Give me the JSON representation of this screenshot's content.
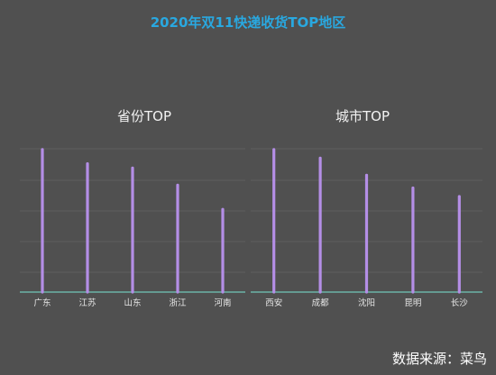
{
  "main_title": "2020年双11快递收货TOP地区",
  "source_text": "数据来源：菜鸟",
  "colors": {
    "bar": "#b48ee6",
    "axis": "#6fc6b8",
    "grid": "#5e5e5e",
    "title": "#29a8e0"
  },
  "chart_data": [
    {
      "type": "bar",
      "title": "省份TOP",
      "categories": [
        "广东",
        "江苏",
        "山东",
        "浙江",
        "河南"
      ],
      "values": [
        100,
        90,
        87,
        75,
        58
      ],
      "ylim": [
        0,
        110
      ],
      "grid": true
    },
    {
      "type": "bar",
      "title": "城市TOP",
      "categories": [
        "西安",
        "成都",
        "沈阳",
        "昆明",
        "长沙"
      ],
      "values": [
        100,
        94,
        82,
        73,
        67
      ],
      "ylim": [
        0,
        110
      ],
      "grid": true
    }
  ]
}
